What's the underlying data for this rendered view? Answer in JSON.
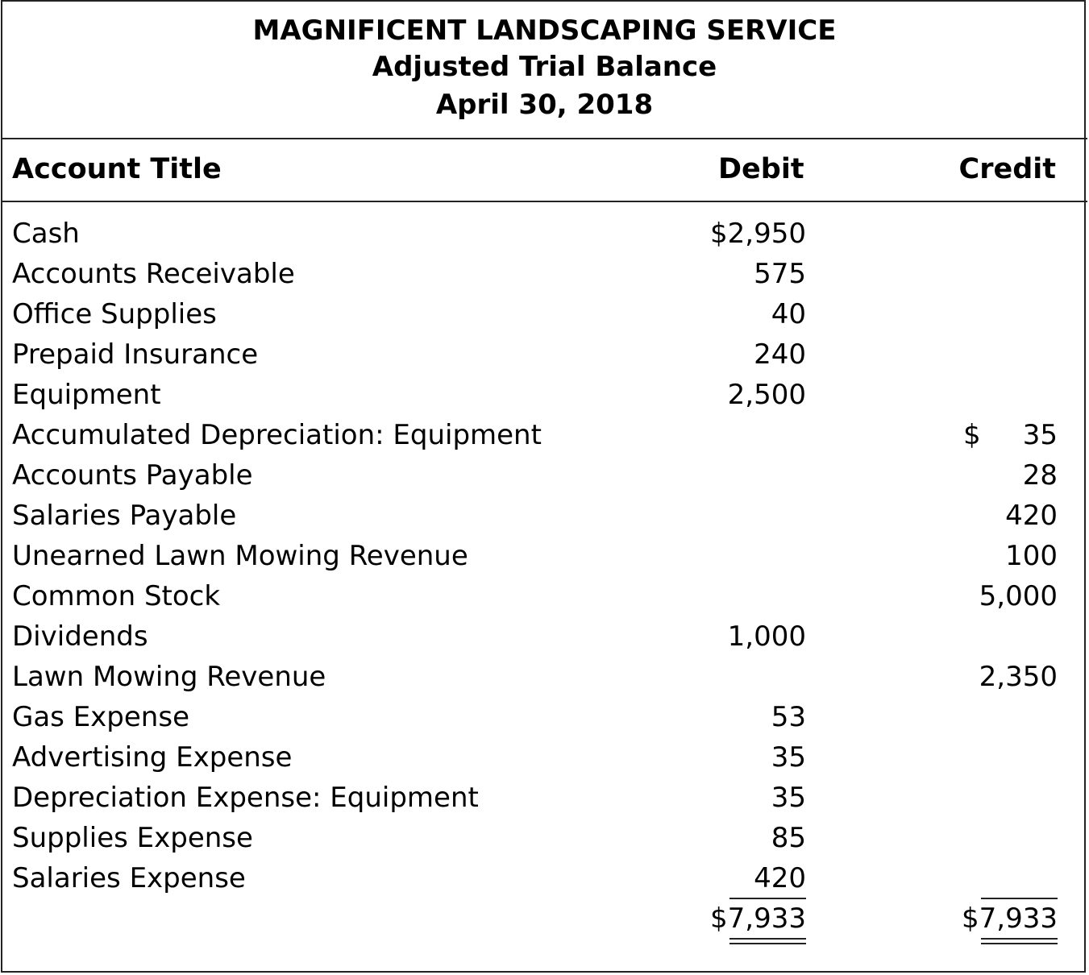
{
  "header": {
    "company": "MAGNIFICENT LANDSCAPING SERVICE",
    "statement": "Adjusted Trial Balance",
    "date": "April 30, 2018"
  },
  "columns": {
    "account": "Account Title",
    "debit": "Debit",
    "credit": "Credit"
  },
  "rows": [
    {
      "account": "Cash",
      "debit": "$2,950",
      "credit": ""
    },
    {
      "account": "Accounts Receivable",
      "debit": "575",
      "credit": ""
    },
    {
      "account": "Office Supplies",
      "debit": "40",
      "credit": ""
    },
    {
      "account": "Prepaid Insurance",
      "debit": "240",
      "credit": ""
    },
    {
      "account": "Equipment",
      "debit": "2,500",
      "credit": ""
    },
    {
      "account": "Accumulated Depreciation: Equipment",
      "debit": "",
      "credit_symbol": "$",
      "credit": "35"
    },
    {
      "account": "Accounts Payable",
      "debit": "",
      "credit": "28"
    },
    {
      "account": "Salaries Payable",
      "debit": "",
      "credit": "420"
    },
    {
      "account": "Unearned Lawn Mowing Revenue",
      "debit": "",
      "credit": "100"
    },
    {
      "account": "Common Stock",
      "debit": "",
      "credit": "5,000"
    },
    {
      "account": "Dividends",
      "debit": "1,000",
      "credit": ""
    },
    {
      "account": "Lawn Mowing Revenue",
      "debit": "",
      "credit": "2,350"
    },
    {
      "account": "Gas Expense",
      "debit": "53",
      "credit": ""
    },
    {
      "account": "Advertising Expense",
      "debit": "35",
      "credit": ""
    },
    {
      "account": "Depreciation Expense: Equipment",
      "debit": "35",
      "credit": ""
    },
    {
      "account": "Supplies Expense",
      "debit": "85",
      "credit": ""
    },
    {
      "account": "Salaries Expense",
      "debit": "420",
      "credit": ""
    }
  ],
  "totals": {
    "debit": "$7,933",
    "credit": "$7,933"
  }
}
